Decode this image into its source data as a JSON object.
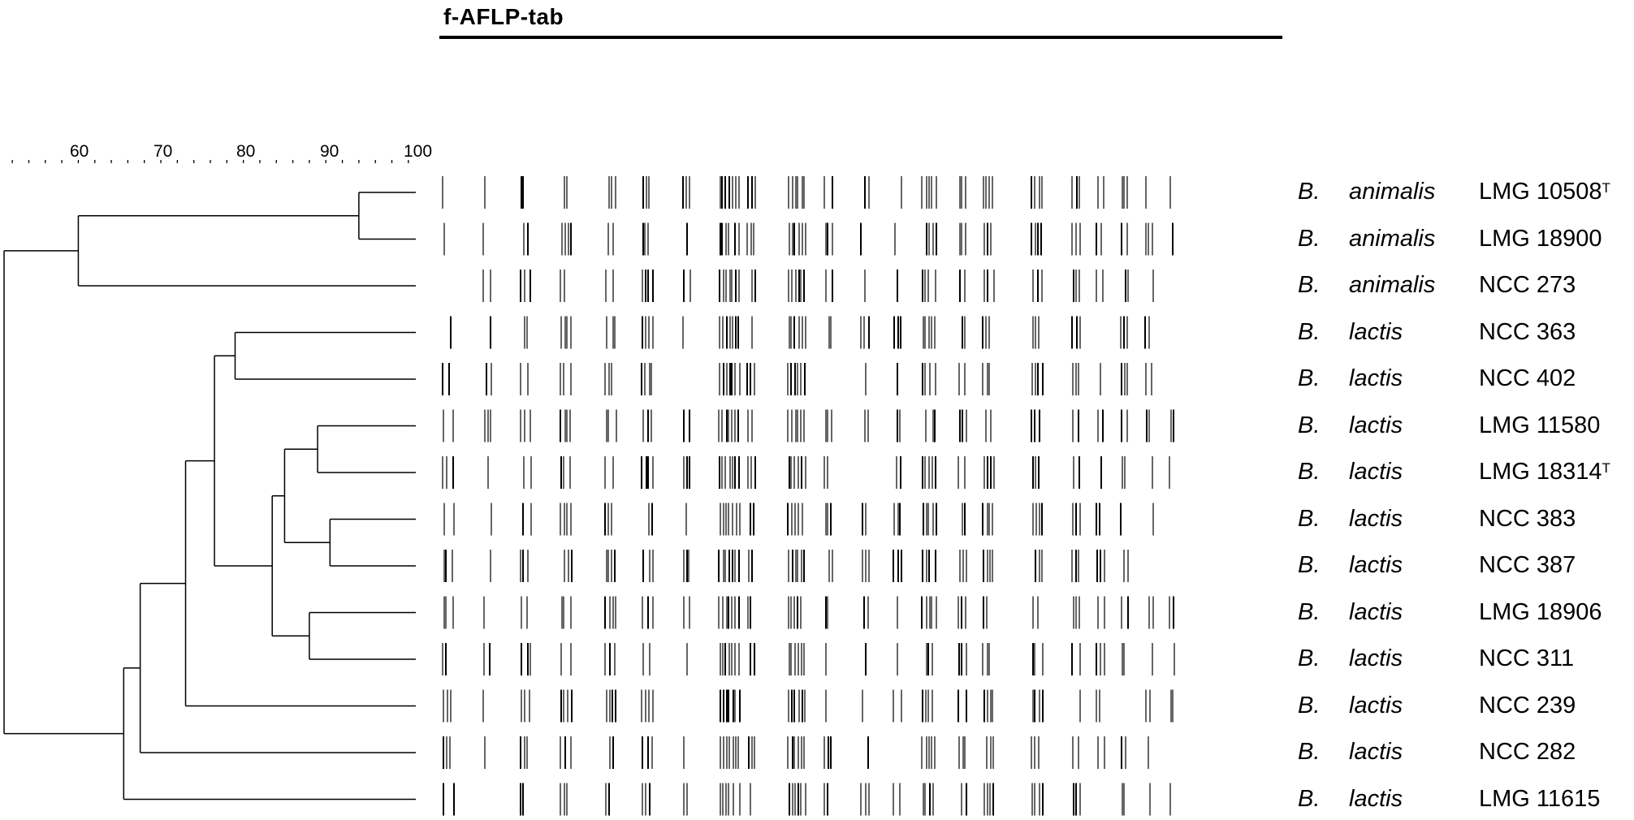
{
  "title": "f-AFLP-tab",
  "scale": {
    "labels": [
      "60",
      "70",
      "80",
      "90",
      "100"
    ],
    "min": 50,
    "max": 100
  },
  "strains": [
    {
      "genus": "B.",
      "species": "animalis",
      "strain": "LMG 10508",
      "sup": "T"
    },
    {
      "genus": "B.",
      "species": "animalis",
      "strain": "LMG 18900",
      "sup": ""
    },
    {
      "genus": "B.",
      "species": "animalis",
      "strain": "NCC 273",
      "sup": ""
    },
    {
      "genus": "B.",
      "species": "lactis",
      "strain": "NCC 363",
      "sup": ""
    },
    {
      "genus": "B.",
      "species": "lactis",
      "strain": "NCC 402",
      "sup": ""
    },
    {
      "genus": "B.",
      "species": "lactis",
      "strain": "LMG 11580",
      "sup": ""
    },
    {
      "genus": "B.",
      "species": "lactis",
      "strain": "LMG 18314",
      "sup": "T"
    },
    {
      "genus": "B.",
      "species": "lactis",
      "strain": "NCC 383",
      "sup": ""
    },
    {
      "genus": "B.",
      "species": "lactis",
      "strain": "NCC 387",
      "sup": ""
    },
    {
      "genus": "B.",
      "species": "lactis",
      "strain": "LMG 18906",
      "sup": ""
    },
    {
      "genus": "B.",
      "species": "lactis",
      "strain": "NCC 311",
      "sup": ""
    },
    {
      "genus": "B.",
      "species": "lactis",
      "strain": "NCC 239",
      "sup": ""
    },
    {
      "genus": "B.",
      "species": "lactis",
      "strain": "NCC 282",
      "sup": ""
    },
    {
      "genus": "B.",
      "species": "lactis",
      "strain": "LMG 11615",
      "sup": ""
    }
  ],
  "tree": {
    "leaves": [
      0,
      1,
      2,
      3,
      4,
      5,
      6,
      7,
      8,
      9,
      10,
      11,
      12,
      13
    ],
    "merges": [
      {
        "a": "L0",
        "b": "L1",
        "sim": 93
      },
      {
        "a": "M0",
        "b": "L2",
        "sim": 59
      },
      {
        "a": "L3",
        "b": "L4",
        "sim": 78
      },
      {
        "a": "L5",
        "b": "L6",
        "sim": 88
      },
      {
        "a": "L7",
        "b": "L8",
        "sim": 89.5
      },
      {
        "a": "M3",
        "b": "M4",
        "sim": 84
      },
      {
        "a": "L9",
        "b": "L10",
        "sim": 87
      },
      {
        "a": "M5",
        "b": "M6",
        "sim": 82.5
      },
      {
        "a": "M2",
        "b": "M7",
        "sim": 75.5
      },
      {
        "a": "M8",
        "b": "L11",
        "sim": 72
      },
      {
        "a": "M9",
        "b": "L12",
        "sim": 66.5
      },
      {
        "a": "M10",
        "b": "L13",
        "sim": 64.5
      },
      {
        "a": "M1",
        "b": "M11",
        "sim": 50
      }
    ]
  }
}
